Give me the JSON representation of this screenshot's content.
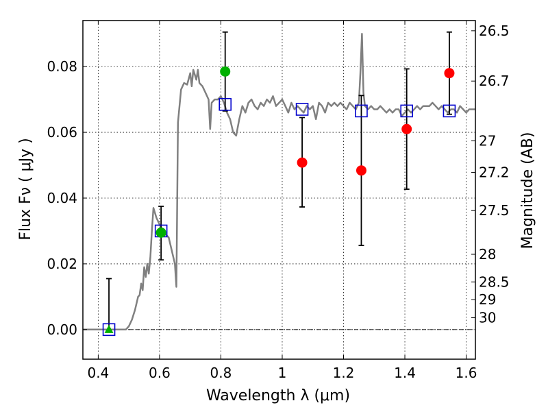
{
  "chart_data": {
    "type": "scatter",
    "xlabel": "Wavelength  λ (μm)",
    "ylabel": "Flux  Fν  ( μJy )",
    "ylabel_right": "Magnitude (AB)",
    "xlim": [
      0.35,
      1.63
    ],
    "ylim": [
      -0.009,
      0.094
    ],
    "grid": true,
    "x_ticks": [
      {
        "v": 0.4,
        "label": "0.4"
      },
      {
        "v": 0.6,
        "label": "0.6"
      },
      {
        "v": 0.8,
        "label": "0.8"
      },
      {
        "v": 1.0,
        "label": "1"
      },
      {
        "v": 1.2,
        "label": "1.2"
      },
      {
        "v": 1.4,
        "label": "1.4"
      },
      {
        "v": 1.6,
        "label": "1.6"
      }
    ],
    "y_ticks": [
      {
        "v": 0.0,
        "label": "0.00"
      },
      {
        "v": 0.02,
        "label": "0.02"
      },
      {
        "v": 0.04,
        "label": "0.04"
      },
      {
        "v": 0.06,
        "label": "0.06"
      },
      {
        "v": 0.08,
        "label": "0.08"
      }
    ],
    "mag_ticks": [
      {
        "v": 0.0909,
        "label": "26.5"
      },
      {
        "v": 0.0756,
        "label": "26.7"
      },
      {
        "v": 0.0574,
        "label": "27"
      },
      {
        "v": 0.0478,
        "label": "27.2"
      },
      {
        "v": 0.0362,
        "label": "27.5"
      },
      {
        "v": 0.0229,
        "label": "28"
      },
      {
        "v": 0.0145,
        "label": "28.5"
      },
      {
        "v": 0.0091,
        "label": "29"
      },
      {
        "v": 0.0036,
        "label": "30"
      }
    ],
    "template_line": [
      [
        0.35,
        0
      ],
      [
        0.49,
        0
      ],
      [
        0.5,
        0.001
      ],
      [
        0.51,
        0.003
      ],
      [
        0.52,
        0.006
      ],
      [
        0.53,
        0.01
      ],
      [
        0.535,
        0.0105
      ],
      [
        0.54,
        0.014
      ],
      [
        0.545,
        0.012
      ],
      [
        0.55,
        0.019
      ],
      [
        0.555,
        0.016
      ],
      [
        0.56,
        0.02
      ],
      [
        0.565,
        0.017
      ],
      [
        0.57,
        0.022
      ],
      [
        0.575,
        0.03
      ],
      [
        0.58,
        0.037
      ],
      [
        0.59,
        0.034
      ],
      [
        0.6,
        0.032
      ],
      [
        0.61,
        0.03
      ],
      [
        0.62,
        0.029
      ],
      [
        0.63,
        0.028
      ],
      [
        0.64,
        0.024
      ],
      [
        0.65,
        0.02
      ],
      [
        0.655,
        0.013
      ],
      [
        0.66,
        0.063
      ],
      [
        0.67,
        0.073
      ],
      [
        0.68,
        0.075
      ],
      [
        0.69,
        0.0745
      ],
      [
        0.7,
        0.078
      ],
      [
        0.705,
        0.074
      ],
      [
        0.71,
        0.079
      ],
      [
        0.72,
        0.076
      ],
      [
        0.725,
        0.079
      ],
      [
        0.73,
        0.075
      ],
      [
        0.74,
        0.074
      ],
      [
        0.75,
        0.072
      ],
      [
        0.76,
        0.07
      ],
      [
        0.765,
        0.061
      ],
      [
        0.77,
        0.069
      ],
      [
        0.78,
        0.07
      ],
      [
        0.79,
        0.07
      ],
      [
        0.8,
        0.071
      ],
      [
        0.81,
        0.069
      ],
      [
        0.82,
        0.066
      ],
      [
        0.83,
        0.064
      ],
      [
        0.84,
        0.06
      ],
      [
        0.85,
        0.059
      ],
      [
        0.86,
        0.064
      ],
      [
        0.87,
        0.068
      ],
      [
        0.88,
        0.066
      ],
      [
        0.89,
        0.069
      ],
      [
        0.9,
        0.07
      ],
      [
        0.91,
        0.068
      ],
      [
        0.92,
        0.067
      ],
      [
        0.93,
        0.069
      ],
      [
        0.94,
        0.068
      ],
      [
        0.95,
        0.07
      ],
      [
        0.96,
        0.069
      ],
      [
        0.97,
        0.071
      ],
      [
        0.98,
        0.068
      ],
      [
        0.99,
        0.069
      ],
      [
        1.0,
        0.07
      ],
      [
        1.01,
        0.068
      ],
      [
        1.02,
        0.066
      ],
      [
        1.03,
        0.069
      ],
      [
        1.04,
        0.067
      ],
      [
        1.05,
        0.068
      ],
      [
        1.06,
        0.067
      ],
      [
        1.07,
        0.066
      ],
      [
        1.08,
        0.068
      ],
      [
        1.09,
        0.067
      ],
      [
        1.1,
        0.068
      ],
      [
        1.11,
        0.064
      ],
      [
        1.12,
        0.069
      ],
      [
        1.13,
        0.068
      ],
      [
        1.14,
        0.066
      ],
      [
        1.15,
        0.069
      ],
      [
        1.16,
        0.068
      ],
      [
        1.17,
        0.069
      ],
      [
        1.18,
        0.068
      ],
      [
        1.19,
        0.069
      ],
      [
        1.2,
        0.068
      ],
      [
        1.21,
        0.067
      ],
      [
        1.22,
        0.069
      ],
      [
        1.23,
        0.068
      ],
      [
        1.24,
        0.067
      ],
      [
        1.25,
        0.069
      ],
      [
        1.255,
        0.078
      ],
      [
        1.26,
        0.09
      ],
      [
        1.265,
        0.072
      ],
      [
        1.27,
        0.068
      ],
      [
        1.28,
        0.067
      ],
      [
        1.29,
        0.068
      ],
      [
        1.3,
        0.067
      ],
      [
        1.31,
        0.067
      ],
      [
        1.32,
        0.068
      ],
      [
        1.33,
        0.067
      ],
      [
        1.34,
        0.066
      ],
      [
        1.35,
        0.067
      ],
      [
        1.36,
        0.066
      ],
      [
        1.37,
        0.067
      ],
      [
        1.38,
        0.067
      ],
      [
        1.39,
        0.065
      ],
      [
        1.4,
        0.066
      ],
      [
        1.41,
        0.067
      ],
      [
        1.42,
        0.066
      ],
      [
        1.43,
        0.067
      ],
      [
        1.44,
        0.068
      ],
      [
        1.45,
        0.067
      ],
      [
        1.46,
        0.068
      ],
      [
        1.47,
        0.068
      ],
      [
        1.48,
        0.068
      ],
      [
        1.49,
        0.069
      ],
      [
        1.5,
        0.068
      ],
      [
        1.51,
        0.067
      ],
      [
        1.52,
        0.068
      ],
      [
        1.53,
        0.067
      ],
      [
        1.54,
        0.066
      ],
      [
        1.55,
        0.067
      ],
      [
        1.56,
        0.067
      ],
      [
        1.57,
        0.066
      ],
      [
        1.58,
        0.068
      ],
      [
        1.59,
        0.067
      ],
      [
        1.6,
        0.066
      ],
      [
        1.61,
        0.067
      ],
      [
        1.62,
        0.067
      ],
      [
        1.63,
        0.067
      ]
    ],
    "template_squares": [
      {
        "x": 0.435,
        "y": 0.0
      },
      {
        "x": 0.605,
        "y": 0.03
      },
      {
        "x": 0.814,
        "y": 0.0685
      },
      {
        "x": 1.065,
        "y": 0.067
      },
      {
        "x": 1.258,
        "y": 0.0665
      },
      {
        "x": 1.406,
        "y": 0.0665
      },
      {
        "x": 1.545,
        "y": 0.0665
      }
    ],
    "error_bars": [
      {
        "x": 0.435,
        "y": 0.0,
        "low": 0.0,
        "high": 0.0155
      },
      {
        "x": 0.605,
        "y": 0.0295,
        "low": 0.0212,
        "high": 0.0375
      },
      {
        "x": 0.814,
        "y": 0.0785,
        "low": 0.0665,
        "high": 0.0905
      },
      {
        "x": 1.065,
        "y": 0.0508,
        "low": 0.0373,
        "high": 0.0645
      },
      {
        "x": 1.258,
        "y": 0.0484,
        "low": 0.0256,
        "high": 0.0712
      },
      {
        "x": 1.406,
        "y": 0.061,
        "low": 0.0427,
        "high": 0.0793
      },
      {
        "x": 1.545,
        "y": 0.078,
        "low": 0.0655,
        "high": 0.0905
      }
    ],
    "green_circles": [
      {
        "x": 0.605,
        "y": 0.0295
      },
      {
        "x": 0.814,
        "y": 0.0785
      }
    ],
    "green_triangles": [
      {
        "x": 0.435,
        "y": 0.0
      }
    ],
    "red_circles": [
      {
        "x": 1.065,
        "y": 0.0508
      },
      {
        "x": 1.258,
        "y": 0.0484
      },
      {
        "x": 1.406,
        "y": 0.061
      },
      {
        "x": 1.545,
        "y": 0.078
      }
    ],
    "colors": {
      "template": "#808080",
      "squares": "#0000cc",
      "green": "#00b000",
      "red": "#ff0000",
      "errorbar": "#000000",
      "grid": "#000000"
    }
  }
}
